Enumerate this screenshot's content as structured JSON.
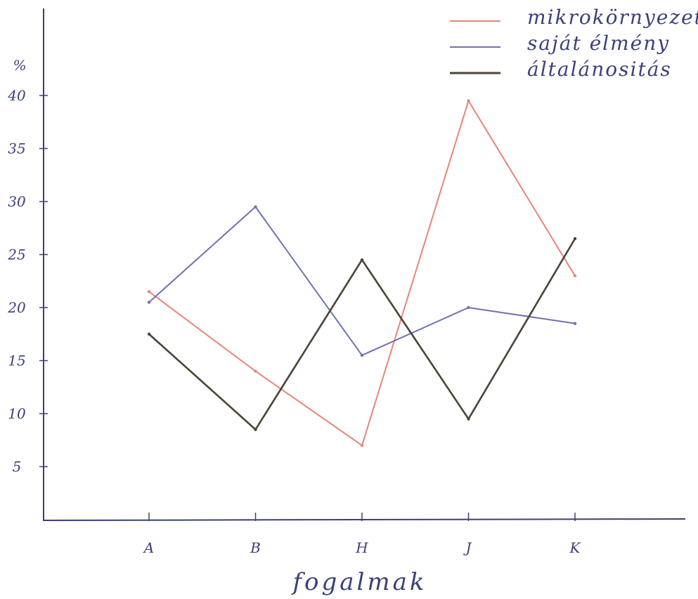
{
  "chart_data": {
    "type": "line",
    "xlabel": "fogalmak",
    "ylabel": "%",
    "categories": [
      "A",
      "B",
      "H",
      "J",
      "K"
    ],
    "yticks": [
      5,
      10,
      15,
      20,
      25,
      30,
      35,
      40
    ],
    "ylim": [
      0,
      47
    ],
    "grid": false,
    "legend_position": "top-right",
    "series": [
      {
        "name": "mikrokörnyezet",
        "color": "#e8857a",
        "values": [
          21.5,
          14,
          7,
          39.5,
          23
        ]
      },
      {
        "name": "saját élmény",
        "color": "#6f72b0",
        "values": [
          20.5,
          29.5,
          15.5,
          20,
          18.5
        ]
      },
      {
        "name": "általánositás",
        "color": "#4a4436",
        "values": [
          17.5,
          8.5,
          24.5,
          9.5,
          26.5
        ]
      }
    ]
  }
}
